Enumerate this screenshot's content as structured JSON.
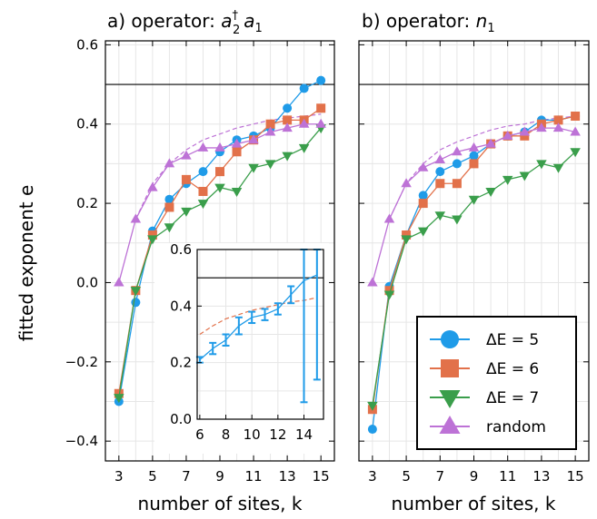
{
  "chart_data": [
    {
      "type": "line",
      "title": "a) operator: a₂† a₁",
      "title_prefix": "a) operator: ",
      "title_op_base1": "a",
      "title_op_sub1": "2",
      "title_op_sup1": "†",
      "title_op_base2": "a",
      "title_op_sub2": "1",
      "xlabel": "number of sites, k",
      "ylabel": "fitted exponent e",
      "xlim": [
        2.2,
        15.8
      ],
      "ylim": [
        -0.45,
        0.61
      ],
      "xticks": [
        3,
        5,
        7,
        9,
        11,
        13,
        15
      ],
      "yticks": [
        -0.4,
        -0.2,
        0.0,
        0.2,
        0.4,
        0.6
      ],
      "ytick_labels": [
        "−0.4",
        "−0.2",
        "0.0",
        "0.2",
        "0.4",
        "0.6"
      ],
      "hline": 0.5,
      "x": [
        3,
        4,
        5,
        6,
        7,
        8,
        9,
        10,
        11,
        12,
        13,
        14,
        15
      ],
      "series": [
        {
          "name": "ΔE = 5",
          "color": "#1f9be8",
          "marker": "circle",
          "values": [
            -0.3,
            -0.05,
            0.13,
            0.21,
            0.25,
            0.28,
            0.33,
            0.36,
            0.37,
            0.39,
            0.44,
            0.49,
            0.51
          ]
        },
        {
          "name": "ΔE = 6",
          "color": "#e2714a",
          "marker": "square",
          "values": [
            -0.28,
            -0.02,
            0.12,
            0.19,
            0.26,
            0.23,
            0.28,
            0.33,
            0.36,
            0.4,
            0.41,
            0.41,
            0.44
          ]
        },
        {
          "name": "ΔE = 7",
          "color": "#3a9e4b",
          "marker": "triangle-down",
          "values": [
            -0.29,
            -0.02,
            0.11,
            0.14,
            0.18,
            0.2,
            0.24,
            0.23,
            0.29,
            0.3,
            0.32,
            0.34,
            0.39
          ]
        },
        {
          "name": "random",
          "color": "#bd72d6",
          "marker": "triangle-up",
          "values": [
            0.0,
            0.16,
            0.24,
            0.3,
            0.32,
            0.34,
            0.34,
            0.35,
            0.36,
            0.38,
            0.39,
            0.4,
            0.4
          ]
        }
      ],
      "fit_curve": {
        "color": "#bd72d6",
        "style": "dashed",
        "x": [
          4,
          5,
          6,
          7,
          8,
          9,
          10,
          11,
          12,
          13,
          14,
          15
        ],
        "values": [
          0.16,
          0.25,
          0.3,
          0.335,
          0.36,
          0.375,
          0.39,
          0.4,
          0.41,
          0.415,
          0.42,
          0.425
        ]
      },
      "inset": {
        "xlim": [
          5.8,
          15.5
        ],
        "ylim": [
          0.0,
          0.6
        ],
        "xticks": [
          6,
          8,
          10,
          12,
          14
        ],
        "xtick_labels": [
          "6",
          "8",
          "10",
          "12",
          "14"
        ],
        "yticks": [
          0.0,
          0.2,
          0.4,
          0.6
        ],
        "ytick_labels": [
          "0.0",
          "0.2",
          "0.4",
          "0.6"
        ],
        "hline": 0.5,
        "series": {
          "color": "#1f9be8",
          "x": [
            6,
            7,
            8,
            9,
            10,
            11,
            12,
            13,
            14,
            15
          ],
          "values": [
            0.21,
            0.25,
            0.28,
            0.33,
            0.36,
            0.37,
            0.39,
            0.44,
            0.49,
            0.51
          ],
          "err_low": [
            0.2,
            0.23,
            0.26,
            0.3,
            0.34,
            0.35,
            0.37,
            0.41,
            0.06,
            0.14
          ],
          "err_high": [
            0.22,
            0.27,
            0.3,
            0.36,
            0.38,
            0.39,
            0.41,
            0.47,
            0.6,
            0.6
          ]
        },
        "fit_curve": {
          "color": "#e2714a",
          "style": "dashed",
          "x": [
            6,
            7,
            8,
            9,
            10,
            11,
            12,
            13,
            14,
            15
          ],
          "values": [
            0.3,
            0.33,
            0.355,
            0.37,
            0.385,
            0.395,
            0.405,
            0.415,
            0.42,
            0.43
          ]
        }
      }
    },
    {
      "type": "line",
      "title": "b) operator: n₁",
      "title_prefix": "b) operator: ",
      "title_op_base1": "n",
      "title_op_sub1": "1",
      "xlabel": "number of sites, k",
      "xlim": [
        2.2,
        15.8
      ],
      "ylim": [
        -0.45,
        0.61
      ],
      "xticks": [
        3,
        5,
        7,
        9,
        11,
        13,
        15
      ],
      "hline": 0.5,
      "x": [
        3,
        4,
        5,
        6,
        7,
        8,
        9,
        10,
        11,
        12,
        13,
        14,
        15
      ],
      "series": [
        {
          "name": "ΔE = 5",
          "color": "#1f9be8",
          "marker": "circle",
          "values": [
            -0.37,
            -0.01,
            0.12,
            0.22,
            0.28,
            0.3,
            0.32,
            0.35,
            0.37,
            0.38,
            0.41,
            0.41,
            0.42
          ]
        },
        {
          "name": "ΔE = 6",
          "color": "#e2714a",
          "marker": "square",
          "values": [
            -0.32,
            -0.02,
            0.12,
            0.2,
            0.25,
            0.25,
            0.3,
            0.35,
            0.37,
            0.37,
            0.4,
            0.41,
            0.42
          ]
        },
        {
          "name": "ΔE = 7",
          "color": "#3a9e4b",
          "marker": "triangle-down",
          "values": [
            -0.31,
            -0.03,
            0.11,
            0.13,
            0.17,
            0.16,
            0.21,
            0.23,
            0.26,
            0.27,
            0.3,
            0.29,
            0.33
          ]
        },
        {
          "name": "random",
          "color": "#bd72d6",
          "marker": "triangle-up",
          "values": [
            0.0,
            0.16,
            0.25,
            0.29,
            0.31,
            0.33,
            0.34,
            0.35,
            0.37,
            0.38,
            0.39,
            0.39,
            0.38
          ]
        }
      ],
      "fit_curve": {
        "color": "#bd72d6",
        "style": "dashed",
        "x": [
          4,
          5,
          6,
          7,
          8,
          9,
          10,
          11,
          12,
          13,
          14,
          15
        ],
        "values": [
          0.16,
          0.25,
          0.3,
          0.335,
          0.355,
          0.37,
          0.385,
          0.395,
          0.4,
          0.41,
          0.415,
          0.42
        ]
      },
      "legend": {
        "placement": "bottom-right",
        "entries": [
          "ΔE = 5",
          "ΔE = 6",
          "ΔE = 7",
          "random"
        ]
      }
    }
  ]
}
